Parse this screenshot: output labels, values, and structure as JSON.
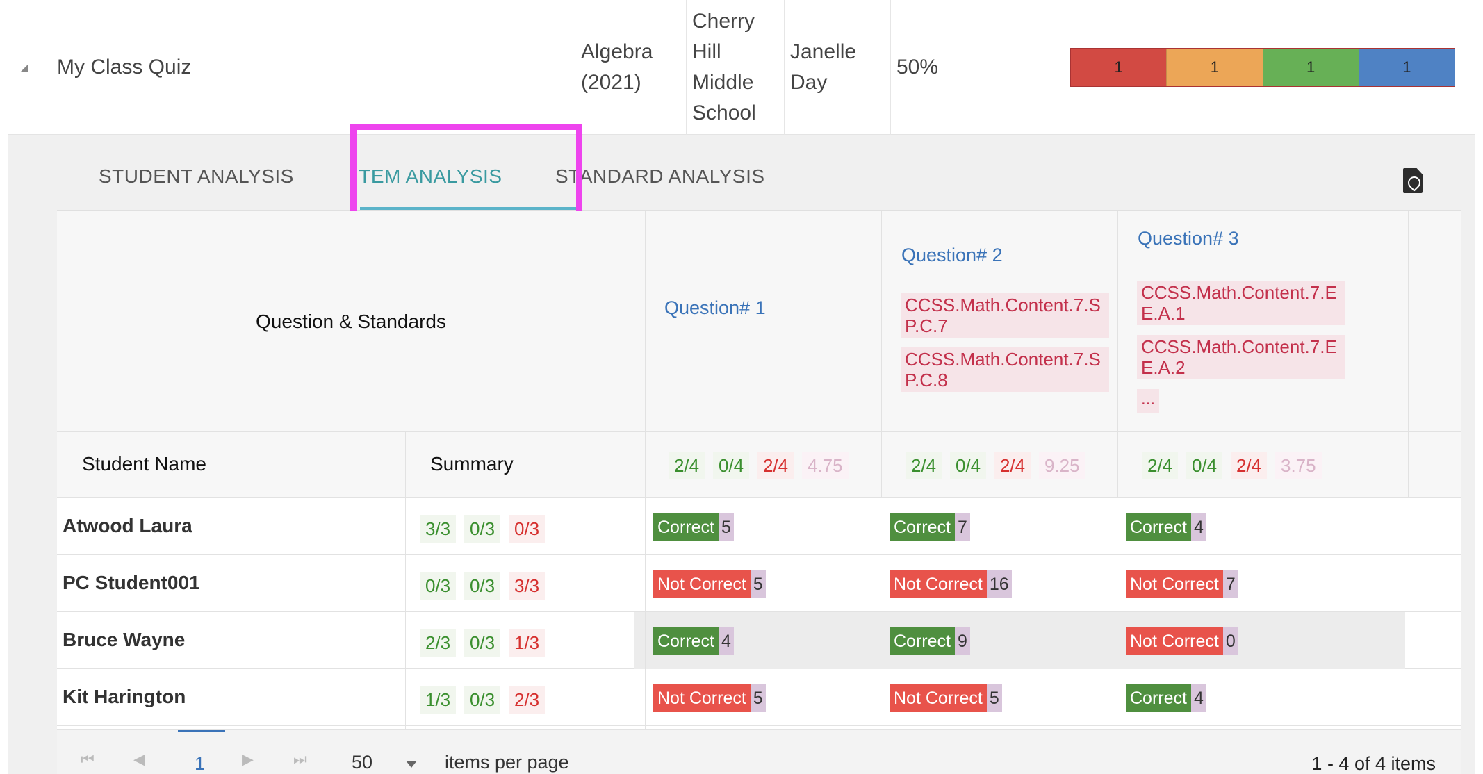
{
  "quiz": {
    "name": "My Class Quiz",
    "course": "Algebra (2021)",
    "school": "Cherry Hill Middle School",
    "teacher": "Janelle Day",
    "score": "50%",
    "performance": [
      {
        "value": "1",
        "color": "#d24a43"
      },
      {
        "value": "1",
        "color": "#eca657"
      },
      {
        "value": "1",
        "color": "#67b056"
      },
      {
        "value": "1",
        "color": "#4f82c4"
      }
    ]
  },
  "tabs": {
    "student": "STUDENT ANALYSIS",
    "item": "ITEM ANALYSIS",
    "standard": "STANDARD ANALYSIS",
    "active": "item"
  },
  "grid": {
    "header_title": "Question & Standards",
    "student_col": "Student Name",
    "summary_col": "Summary",
    "questions": [
      {
        "label": "Question# 1",
        "standards": [],
        "more": "",
        "stats": [
          "2/4",
          "0/4",
          "2/4",
          "4.75"
        ]
      },
      {
        "label": "Question# 2",
        "standards": [
          "CCSS.Math.Content.7.SP.C.7",
          "CCSS.Math.Content.7.SP.C.8"
        ],
        "more": "",
        "stats": [
          "2/4",
          "0/4",
          "2/4",
          "9.25"
        ]
      },
      {
        "label": "Question# 3",
        "standards": [
          "CCSS.Math.Content.7.EE.A.1",
          "CCSS.Math.Content.7.EE.A.2"
        ],
        "more": "...",
        "stats": [
          "2/4",
          "0/4",
          "2/4",
          "3.75"
        ]
      }
    ],
    "students": [
      {
        "name": "Atwood Laura",
        "summary": [
          "3/3",
          "0/3",
          "0/3"
        ],
        "results": [
          {
            "label": "Correct",
            "ok": true,
            "time": "5"
          },
          {
            "label": "Correct",
            "ok": true,
            "time": "7"
          },
          {
            "label": "Correct",
            "ok": true,
            "time": "4"
          }
        ]
      },
      {
        "name": "PC Student001",
        "summary": [
          "0/3",
          "0/3",
          "3/3"
        ],
        "results": [
          {
            "label": "Not Correct",
            "ok": false,
            "time": "5"
          },
          {
            "label": "Not Correct",
            "ok": false,
            "time": "16"
          },
          {
            "label": "Not Correct",
            "ok": false,
            "time": "7"
          }
        ]
      },
      {
        "name": "Bruce Wayne",
        "summary": [
          "2/3",
          "0/3",
          "1/3"
        ],
        "results": [
          {
            "label": "Correct",
            "ok": true,
            "time": "4"
          },
          {
            "label": "Correct",
            "ok": true,
            "time": "9"
          },
          {
            "label": "Not Correct",
            "ok": false,
            "time": "0"
          }
        ]
      },
      {
        "name": "Kit Harington",
        "summary": [
          "1/3",
          "0/3",
          "2/3"
        ],
        "results": [
          {
            "label": "Not Correct",
            "ok": false,
            "time": "5"
          },
          {
            "label": "Not Correct",
            "ok": false,
            "time": "5"
          },
          {
            "label": "Correct",
            "ok": true,
            "time": "4"
          }
        ]
      }
    ]
  },
  "pager": {
    "page": "1",
    "page_size": "50",
    "per_page_label": "items per page",
    "info": "1 - 4 of 4 items"
  },
  "colors": {
    "highlight": "#ee44ee",
    "correct": "#4f8f3f",
    "not_correct": "#e8534b",
    "link": "#3a73b8"
  },
  "icons": [
    "expand-arrow-icon",
    "pdf-icon",
    "first-page-icon",
    "prev-page-icon",
    "next-page-icon",
    "last-page-icon",
    "dropdown-caret-icon"
  ]
}
